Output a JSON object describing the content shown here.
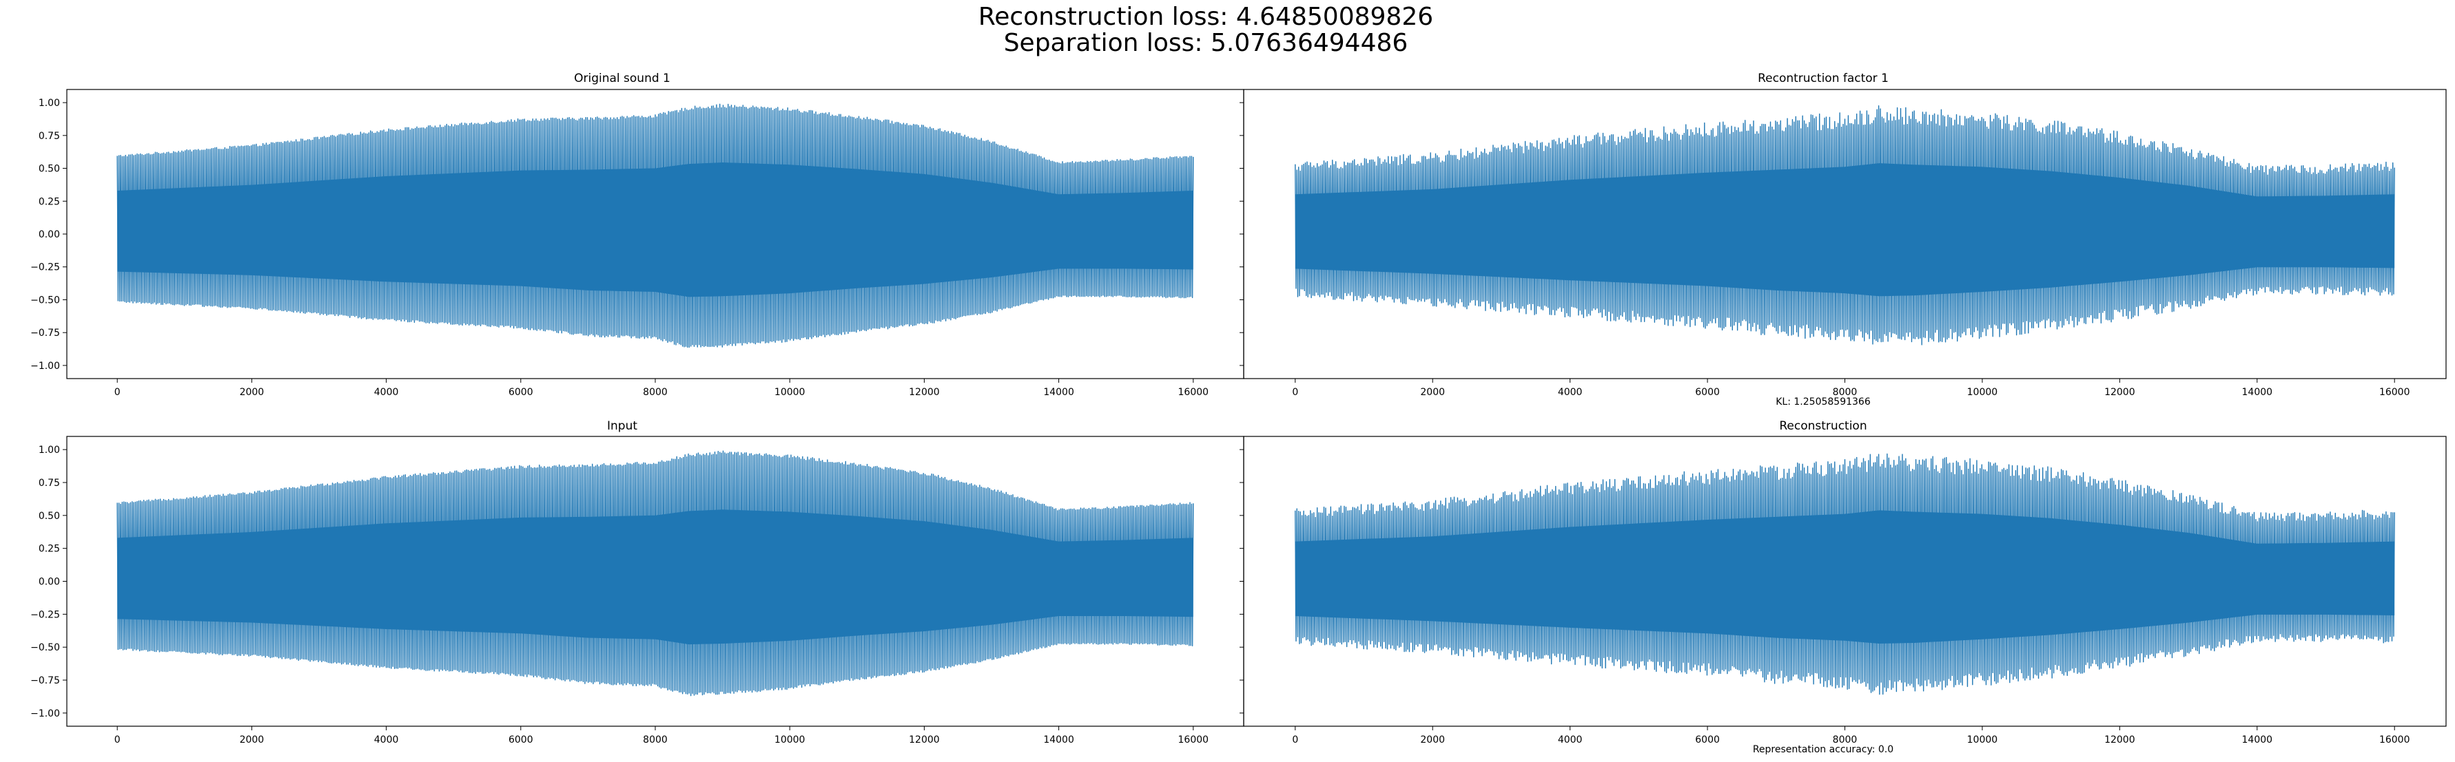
{
  "figure": {
    "title_line1": "Reconstruction loss: 4.64850089826",
    "title_line2": "Separation loss: 5.07636494486"
  },
  "colors": {
    "series": "#1f77b4",
    "axes": "#000000",
    "background": "#ffffff"
  },
  "chart_data": [
    {
      "type": "line",
      "title": "Original sound 1",
      "xlabel": "",
      "ylabel": "",
      "xlim": [
        -750,
        16750
      ],
      "ylim": [
        -1.1,
        1.1
      ],
      "x_ticks": [
        0,
        2000,
        4000,
        6000,
        8000,
        10000,
        12000,
        14000,
        16000
      ],
      "y_ticks": [
        -1.0,
        -0.75,
        -0.5,
        -0.25,
        0.0,
        0.25,
        0.5,
        0.75,
        1.0
      ],
      "y_tick_labels": [
        "−1.00",
        "−0.75",
        "−0.50",
        "−0.25",
        "0.00",
        "0.25",
        "0.50",
        "0.75",
        "1.00"
      ],
      "grid": false,
      "series": [
        {
          "x_range": [
            0,
            16000
          ],
          "envelope": {
            "x": [
              0,
              2000,
              4000,
              6000,
              7000,
              8000,
              8500,
              9000,
              10000,
              11000,
              12000,
              13000,
              14000,
              15000,
              16000
            ],
            "upper": [
              0.6,
              0.68,
              0.8,
              0.88,
              0.89,
              0.91,
              0.97,
              0.99,
              0.96,
              0.9,
              0.83,
              0.71,
              0.55,
              0.57,
              0.6
            ],
            "lower": [
              -0.52,
              -0.57,
              -0.66,
              -0.72,
              -0.78,
              -0.8,
              -0.87,
              -0.86,
              -0.82,
              -0.75,
              -0.69,
              -0.6,
              -0.48,
              -0.48,
              -0.49
            ]
          }
        }
      ]
    },
    {
      "type": "line",
      "title": "Recontruction factor 1",
      "xlabel": "KL: 1.25058591366",
      "ylabel": "",
      "xlim": [
        -750,
        16750
      ],
      "ylim": [
        -1.1,
        1.1
      ],
      "x_ticks": [
        0,
        2000,
        4000,
        6000,
        8000,
        10000,
        12000,
        14000,
        16000
      ],
      "y_ticks": [
        -1.0,
        -0.75,
        -0.5,
        -0.25,
        0.0,
        0.25,
        0.5,
        0.75,
        1.0
      ],
      "y_tick_labels": [],
      "grid": false,
      "series": [
        {
          "x_range": [
            0,
            16000
          ],
          "envelope": {
            "x": [
              0,
              2000,
              4000,
              6000,
              7000,
              8000,
              8500,
              9000,
              10000,
              11000,
              12000,
              13000,
              14000,
              15000,
              16000
            ],
            "upper": [
              0.55,
              0.62,
              0.75,
              0.85,
              0.89,
              0.93,
              0.98,
              0.96,
              0.93,
              0.87,
              0.78,
              0.67,
              0.52,
              0.53,
              0.55
            ],
            "lower": [
              -0.48,
              -0.55,
              -0.64,
              -0.72,
              -0.78,
              -0.82,
              -0.86,
              -0.85,
              -0.8,
              -0.74,
              -0.66,
              -0.57,
              -0.46,
              -0.46,
              -0.47
            ]
          }
        }
      ]
    },
    {
      "type": "line",
      "title": "Input",
      "xlabel": "",
      "ylabel": "",
      "xlim": [
        -750,
        16750
      ],
      "ylim": [
        -1.1,
        1.1
      ],
      "x_ticks": [
        0,
        2000,
        4000,
        6000,
        8000,
        10000,
        12000,
        14000,
        16000
      ],
      "y_ticks": [
        -1.0,
        -0.75,
        -0.5,
        -0.25,
        0.0,
        0.25,
        0.5,
        0.75,
        1.0
      ],
      "y_tick_labels": [
        "−1.00",
        "−0.75",
        "−0.50",
        "−0.25",
        "0.00",
        "0.25",
        "0.50",
        "0.75",
        "1.00"
      ],
      "grid": false,
      "series": [
        {
          "x_range": [
            0,
            16000
          ],
          "envelope": {
            "x": [
              0,
              2000,
              4000,
              6000,
              7000,
              8000,
              8500,
              9000,
              10000,
              11000,
              12000,
              13000,
              14000,
              15000,
              16000
            ],
            "upper": [
              0.6,
              0.68,
              0.8,
              0.88,
              0.89,
              0.91,
              0.97,
              0.99,
              0.96,
              0.9,
              0.83,
              0.71,
              0.55,
              0.57,
              0.6
            ],
            "lower": [
              -0.52,
              -0.57,
              -0.66,
              -0.72,
              -0.78,
              -0.8,
              -0.87,
              -0.86,
              -0.82,
              -0.75,
              -0.69,
              -0.6,
              -0.48,
              -0.48,
              -0.49
            ]
          }
        }
      ]
    },
    {
      "type": "line",
      "title": "Reconstruction",
      "xlabel": "Representation accuracy: 0.0",
      "ylabel": "",
      "xlim": [
        -750,
        16750
      ],
      "ylim": [
        -1.1,
        1.1
      ],
      "x_ticks": [
        0,
        2000,
        4000,
        6000,
        8000,
        10000,
        12000,
        14000,
        16000
      ],
      "y_ticks": [
        -1.0,
        -0.75,
        -0.5,
        -0.25,
        0.0,
        0.25,
        0.5,
        0.75,
        1.0
      ],
      "y_tick_labels": [],
      "grid": false,
      "series": [
        {
          "x_range": [
            0,
            16000
          ],
          "envelope": {
            "x": [
              0,
              2000,
              4000,
              6000,
              7000,
              8000,
              8500,
              9000,
              10000,
              11000,
              12000,
              13000,
              14000,
              15000,
              16000
            ],
            "upper": [
              0.55,
              0.62,
              0.75,
              0.85,
              0.89,
              0.93,
              0.98,
              0.96,
              0.93,
              0.87,
              0.78,
              0.67,
              0.52,
              0.53,
              0.55
            ],
            "lower": [
              -0.48,
              -0.55,
              -0.64,
              -0.72,
              -0.78,
              -0.82,
              -0.86,
              -0.85,
              -0.8,
              -0.74,
              -0.66,
              -0.57,
              -0.46,
              -0.46,
              -0.47
            ]
          }
        }
      ]
    }
  ]
}
